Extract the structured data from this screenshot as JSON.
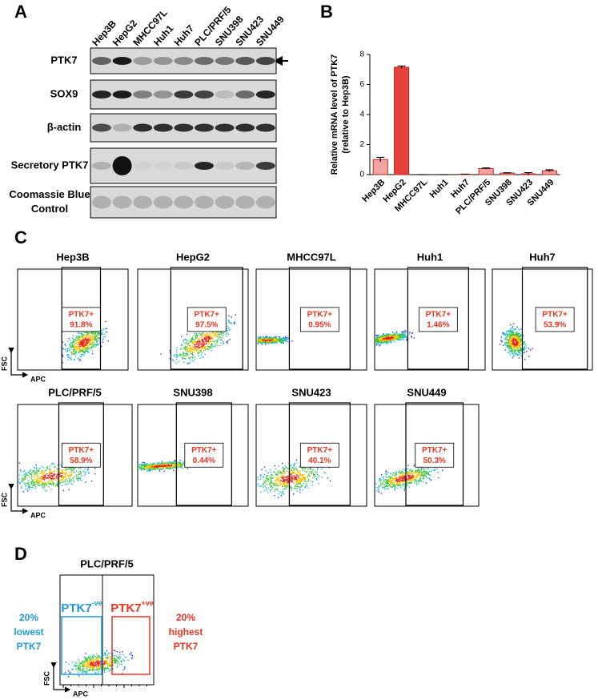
{
  "panel_a": {
    "label": "A",
    "lanes": [
      "Hep3B",
      "HepG2",
      "MHCC97L",
      "Huh1",
      "Huh7",
      "PLC/PRF/5",
      "SNU398",
      "SNU423",
      "SNU449"
    ],
    "rows": [
      [
        "PTK7"
      ],
      [
        "SOX9"
      ],
      [
        "β-actin"
      ],
      [
        "Secretory PTK7"
      ],
      [
        "Coomassie Blue",
        "Control"
      ]
    ]
  },
  "panel_b": {
    "label": "B"
  },
  "chart_data": {
    "type": "bar",
    "y_label": [
      "Relative mRNA level of PTK7",
      "(relative to Hep3B)"
    ],
    "categories": [
      "Hep3B",
      "HepG2",
      "MHCC97L",
      "Huh1",
      "Huh7",
      "PLC/PRF/5",
      "SNU398",
      "SNU423",
      "SNU449"
    ],
    "values": [
      1.0,
      7.15,
      0.0,
      0.0,
      0.02,
      0.4,
      0.1,
      0.05,
      0.25
    ],
    "errors": [
      0.15,
      0.08,
      0.0,
      0.0,
      0.01,
      0.04,
      0.02,
      0.08,
      0.07
    ],
    "colors": [
      "#f4a3a3",
      "#e8403a",
      "#f4a3a3",
      "#f4a3a3",
      "#f4a3a3",
      "#f4a3a3",
      "#f4a3a3",
      "#f4a3a3",
      "#f4a3a3"
    ],
    "ylim": [
      0,
      8
    ],
    "yticks": [
      0,
      2,
      4,
      6,
      8
    ]
  },
  "panel_c": {
    "label": "C",
    "axis": {
      "y": "FSC",
      "x": "APC"
    },
    "plots": [
      {
        "title": "Hep3B",
        "gate": "PTK7+",
        "percent": "91.8%"
      },
      {
        "title": "HepG2",
        "gate": "PTK7+",
        "percent": "97.5%"
      },
      {
        "title": "MHCC97L",
        "gate": "PTK7+",
        "percent": "0.95%"
      },
      {
        "title": "Huh1",
        "gate": "PTK7+",
        "percent": "1.46%"
      },
      {
        "title": "Huh7",
        "gate": "PTK7+",
        "percent": "53.9%"
      },
      {
        "title": "PLC/PRF/5",
        "gate": "PTK7+",
        "percent": "58.9%"
      },
      {
        "title": "SNU398",
        "gate": "PTK7+",
        "percent": "0.44%"
      },
      {
        "title": "SNU423",
        "gate": "PTK7+",
        "percent": "40.1%"
      },
      {
        "title": "SNU449",
        "gate": "PTK7+",
        "percent": "50.3%"
      }
    ]
  },
  "panel_d": {
    "label": "D",
    "title": "PLC/PRF/5",
    "axis": {
      "y": "FSC",
      "x": "APC"
    },
    "negative": {
      "name": "PTK7",
      "sup": "-ve"
    },
    "positive": {
      "name": "PTK7",
      "sup": "+ve"
    },
    "left_note": [
      "20%",
      "lowest",
      "PTK7"
    ],
    "right_note": [
      "20%",
      "highest",
      "PTK7"
    ]
  }
}
